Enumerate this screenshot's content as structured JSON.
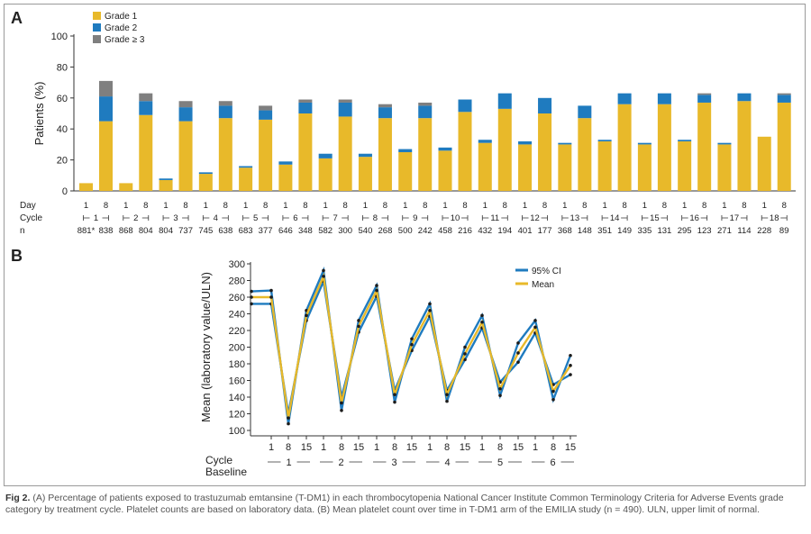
{
  "panel_a_label": "A",
  "panel_b_label": "B",
  "caption": {
    "label": "Fig 2.",
    "text": "(A) Percentage of patients exposed to trastuzumab emtansine (T-DM1) in each thrombocytopenia National Cancer Institute Common Terminology Criteria for Adverse Events grade category by treatment cycle. Platelet counts are based on laboratory data. (B) Mean platelet count over time in T-DM1 arm of the EMILIA study (n = 490). ULN, upper limit of normal."
  },
  "colors": {
    "grade1": "#E8B92A",
    "grade2": "#1F7BBF",
    "grade3": "#7F7F7F",
    "ci": "#1F7BBF",
    "mean": "#E8B92A"
  },
  "chart_data": [
    {
      "type": "bar",
      "stacked": true,
      "ylabel": "Patients (%)",
      "ylim": [
        0,
        100
      ],
      "yticks": [
        0,
        20,
        40,
        60,
        80,
        100
      ],
      "legend_position": "top-left",
      "row_labels": {
        "day": "Day",
        "cycle": "Cycle",
        "n": "n"
      },
      "cycles": [
        "1",
        "2",
        "3",
        "4",
        "5",
        "6",
        "7",
        "8",
        "9",
        "10",
        "11",
        "12",
        "13",
        "14",
        "15",
        "16",
        "17",
        "18"
      ],
      "days": [
        "1",
        "8"
      ],
      "n_labels": [
        "881*",
        "838",
        "868",
        "804",
        "804",
        "737",
        "745",
        "638",
        "683",
        "377",
        "646",
        "348",
        "582",
        "300",
        "540",
        "268",
        "500",
        "242",
        "458",
        "216",
        "432",
        "194",
        "401",
        "177",
        "368",
        "148",
        "351",
        "149",
        "335",
        "131",
        "295",
        "123",
        "271",
        "114",
        "228",
        "89"
      ],
      "series": [
        {
          "name": "Grade 1",
          "values": [
            5,
            45,
            5,
            49,
            7,
            45,
            11,
            47,
            15,
            46,
            17,
            50,
            21,
            48,
            22,
            47,
            25,
            47,
            26,
            51,
            31,
            53,
            30,
            50,
            30,
            47,
            32,
            56,
            30,
            56,
            32,
            57,
            30,
            58,
            35,
            57
          ]
        },
        {
          "name": "Grade 2",
          "values": [
            0,
            16,
            0,
            9,
            1,
            9,
            1,
            8,
            1,
            6,
            2,
            7,
            3,
            9,
            2,
            7,
            2,
            8,
            2,
            8,
            2,
            10,
            2,
            10,
            1,
            8,
            1,
            7,
            1,
            7,
            1,
            5,
            1,
            5,
            0,
            5
          ]
        },
        {
          "name": "Grade ≥ 3",
          "values": [
            0,
            10,
            0,
            5,
            0,
            4,
            0,
            3,
            0,
            3,
            0,
            2,
            0,
            2,
            0,
            2,
            0,
            2,
            0,
            0,
            0,
            0,
            0,
            0,
            0,
            0,
            0,
            0,
            0,
            0,
            0,
            1,
            0,
            0,
            0,
            1
          ]
        }
      ]
    },
    {
      "type": "line",
      "ylabel": "Mean (laboratory value/ULN)",
      "ylim": [
        100,
        300
      ],
      "yticks": [
        100,
        120,
        140,
        160,
        180,
        200,
        220,
        240,
        260,
        280,
        300
      ],
      "legend_position": "top-right",
      "row_labels": {
        "cycle": "Cycle",
        "baseline": "Baseline"
      },
      "x_ticks": [
        "1",
        "8",
        "15",
        "1",
        "8",
        "15",
        "1",
        "8",
        "15",
        "1",
        "8",
        "15",
        "1",
        "8",
        "15",
        "1",
        "8",
        "15"
      ],
      "cycle_groups": [
        "1",
        "2",
        "3",
        "4",
        "5",
        "6"
      ],
      "x": [
        "Baseline",
        "C1D1",
        "C1D8",
        "C1D15",
        "C2D1",
        "C2D8",
        "C2D15",
        "C3D1",
        "C3D8",
        "C3D15",
        "C4D1",
        "C4D8",
        "C4D15",
        "C5D1",
        "C5D8",
        "C5D15",
        "C6D1",
        "C6D8",
        "C6D15"
      ],
      "series": [
        {
          "name": "95% CI",
          "values": [
            267,
            268,
            108,
            244,
            292,
            124,
            232,
            274,
            134,
            210,
            252,
            135,
            200,
            238,
            142,
            205,
            232,
            137,
            190
          ]
        },
        {
          "name": "Mean",
          "values": [
            260,
            260,
            115,
            238,
            285,
            133,
            225,
            268,
            143,
            203,
            244,
            143,
            192,
            230,
            150,
            193,
            224,
            147,
            178
          ]
        },
        {
          "name": "",
          "values": [
            252,
            252,
            120,
            232,
            279,
            140,
            218,
            261,
            148,
            196,
            237,
            148,
            185,
            223,
            158,
            182,
            217,
            155,
            167
          ]
        }
      ]
    }
  ]
}
